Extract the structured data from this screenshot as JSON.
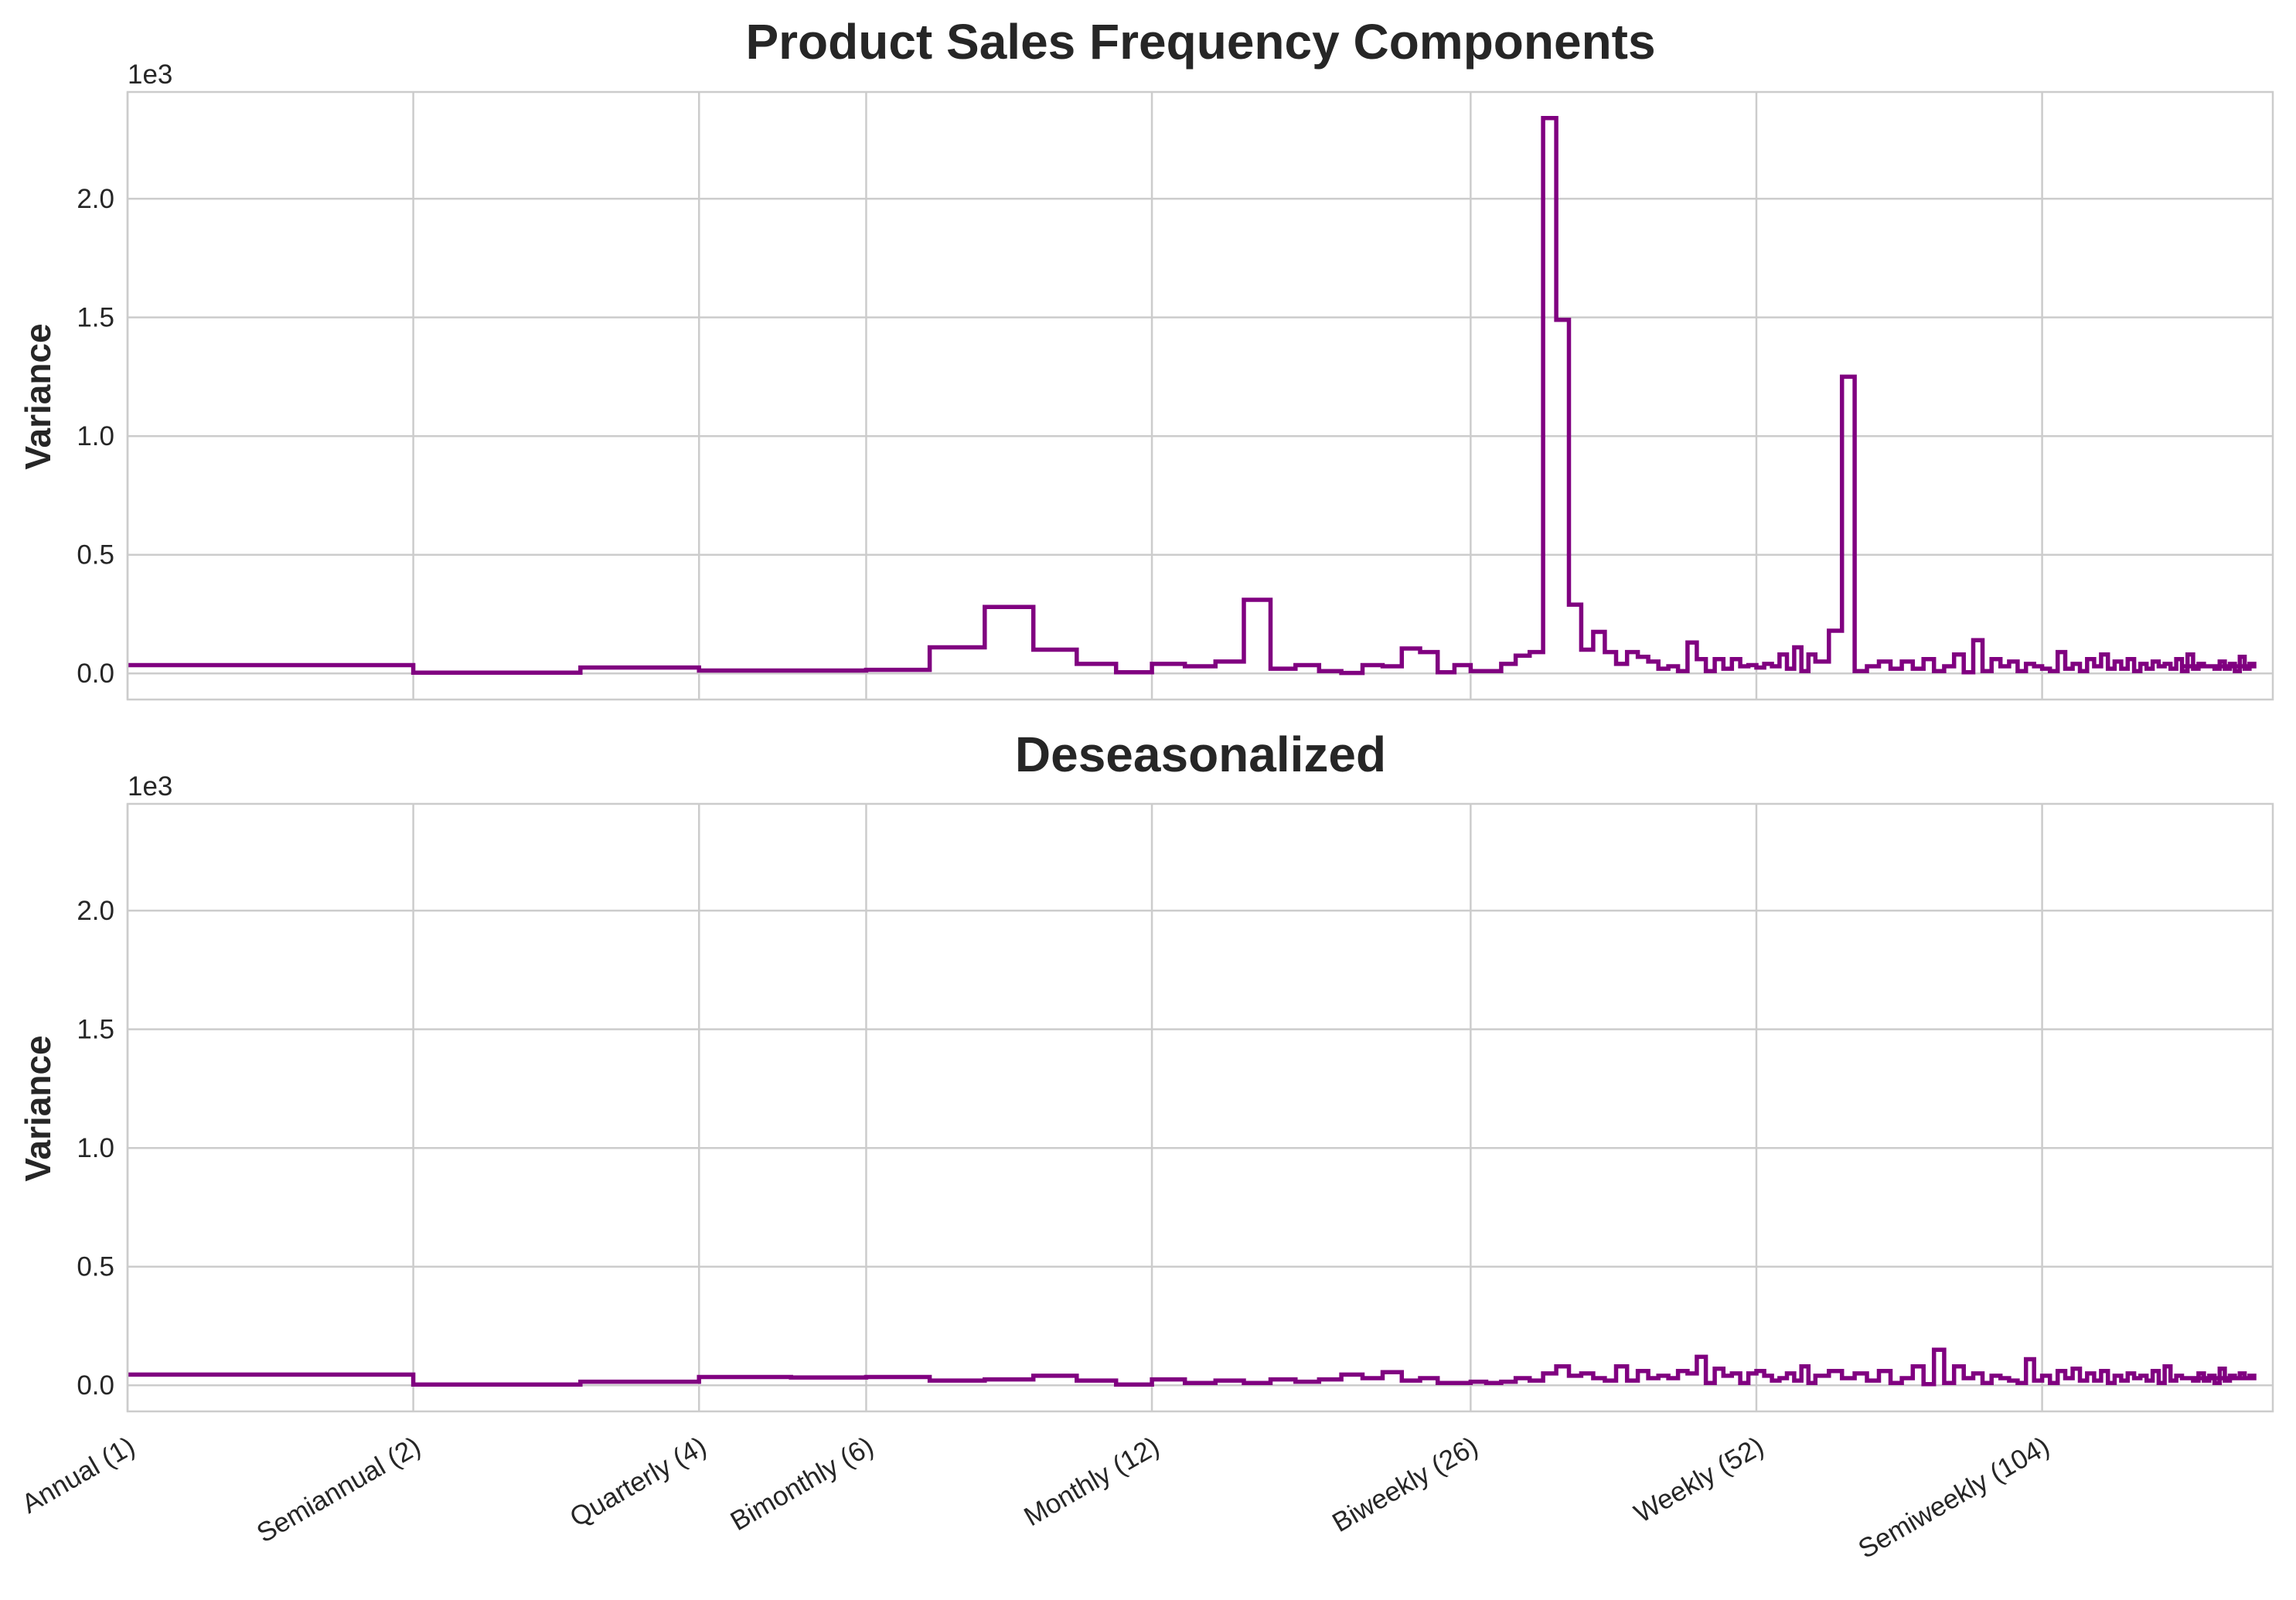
{
  "chart_data": [
    {
      "type": "line",
      "drawstyle": "steps",
      "title": "Product Sales Frequency Components",
      "ylabel": "Variance",
      "y_offset_label": "1e3",
      "ylim": [
        -0.11,
        2.45
      ],
      "yticks": [
        0.0,
        0.5,
        1.0,
        1.5,
        2.0
      ],
      "ytick_labels": [
        "0.0",
        "0.5",
        "1.0",
        "1.5",
        "2.0"
      ],
      "xscale": "log",
      "xlim": [
        1,
        182
      ],
      "xticks": [
        1,
        2,
        4,
        6,
        12,
        26,
        52,
        104
      ],
      "xtick_labels": [
        "Annual (1)",
        "Semiannual (2)",
        "Quarterly (4)",
        "Bimonthly (6)",
        "Monthly (12)",
        "Biweekly (26)",
        "Weekly (52)",
        "Semiweekly (104)"
      ],
      "show_xtick_labels": false,
      "grid": true,
      "color": "#800080",
      "series": [
        {
          "x": [
            1,
            2,
            3,
            4,
            5,
            6,
            7,
            8,
            9,
            10,
            11,
            12,
            13,
            14,
            15,
            16,
            17,
            18,
            19,
            20,
            21,
            22,
            23,
            24,
            25,
            26,
            27,
            28,
            29,
            30,
            31,
            32,
            33,
            34,
            35,
            36,
            37,
            38,
            39,
            40,
            41,
            42,
            43,
            44,
            45,
            46,
            47,
            48,
            49,
            50,
            51,
            52,
            53,
            54,
            55,
            56,
            57,
            58,
            59,
            60,
            62,
            64,
            66,
            68,
            70,
            72,
            74,
            76,
            78,
            80,
            82,
            84,
            86,
            88,
            90,
            92,
            94,
            96,
            98,
            100,
            102,
            104,
            106,
            108,
            110,
            112,
            114,
            116,
            118,
            120,
            122,
            124,
            126,
            128,
            130,
            132,
            134,
            136,
            138,
            140,
            142,
            144,
            146,
            148,
            150,
            152,
            154,
            156,
            158,
            160,
            162,
            164,
            166,
            168,
            170,
            172,
            174
          ],
          "y": [
            0.035,
            0.003,
            0.025,
            0.012,
            0.012,
            0.015,
            0.11,
            0.28,
            0.1,
            0.04,
            0.005,
            0.04,
            0.03,
            0.05,
            0.31,
            0.02,
            0.035,
            0.01,
            0.002,
            0.035,
            0.03,
            0.105,
            0.09,
            0.005,
            0.035,
            0.01,
            0.01,
            0.04,
            0.075,
            0.09,
            2.34,
            1.49,
            0.29,
            0.1,
            0.175,
            0.09,
            0.04,
            0.09,
            0.07,
            0.05,
            0.02,
            0.03,
            0.01,
            0.13,
            0.06,
            0.01,
            0.06,
            0.02,
            0.06,
            0.03,
            0.035,
            0.025,
            0.04,
            0.03,
            0.08,
            0.02,
            0.11,
            0.01,
            0.08,
            0.05,
            0.18,
            1.25,
            0.01,
            0.03,
            0.05,
            0.02,
            0.05,
            0.02,
            0.06,
            0.01,
            0.03,
            0.08,
            0.005,
            0.14,
            0.01,
            0.06,
            0.03,
            0.05,
            0.01,
            0.04,
            0.03,
            0.02,
            0.01,
            0.09,
            0.02,
            0.04,
            0.01,
            0.06,
            0.03,
            0.08,
            0.02,
            0.05,
            0.02,
            0.06,
            0.01,
            0.04,
            0.02,
            0.05,
            0.03,
            0.04,
            0.02,
            0.06,
            0.01,
            0.08,
            0.02,
            0.04,
            0.03,
            0.03,
            0.02,
            0.05,
            0.02,
            0.04,
            0.01,
            0.07,
            0.02,
            0.04,
            0.03
          ]
        }
      ]
    },
    {
      "type": "line",
      "drawstyle": "steps",
      "title": "Deseasonalized",
      "ylabel": "Variance",
      "y_offset_label": "1e3",
      "ylim": [
        -0.11,
        2.45
      ],
      "yticks": [
        0.0,
        0.5,
        1.0,
        1.5,
        2.0
      ],
      "ytick_labels": [
        "0.0",
        "0.5",
        "1.0",
        "1.5",
        "2.0"
      ],
      "xscale": "log",
      "xlim": [
        1,
        182
      ],
      "xticks": [
        1,
        2,
        4,
        6,
        12,
        26,
        52,
        104
      ],
      "xtick_labels": [
        "Annual (1)",
        "Semiannual (2)",
        "Quarterly (4)",
        "Bimonthly (6)",
        "Monthly (12)",
        "Biweekly (26)",
        "Weekly (52)",
        "Semiweekly (104)"
      ],
      "show_xtick_labels": true,
      "grid": true,
      "color": "#800080",
      "series": [
        {
          "x": [
            1,
            2,
            3,
            4,
            5,
            6,
            7,
            8,
            9,
            10,
            11,
            12,
            13,
            14,
            15,
            16,
            17,
            18,
            19,
            20,
            21,
            22,
            23,
            24,
            25,
            26,
            27,
            28,
            29,
            30,
            31,
            32,
            33,
            34,
            35,
            36,
            37,
            38,
            39,
            40,
            41,
            42,
            43,
            44,
            45,
            46,
            47,
            48,
            49,
            50,
            51,
            52,
            53,
            54,
            55,
            56,
            57,
            58,
            59,
            60,
            62,
            64,
            66,
            68,
            70,
            72,
            74,
            76,
            78,
            80,
            82,
            84,
            86,
            88,
            90,
            92,
            94,
            96,
            98,
            100,
            102,
            104,
            106,
            108,
            110,
            112,
            114,
            116,
            118,
            120,
            122,
            124,
            126,
            128,
            130,
            132,
            134,
            136,
            138,
            140,
            142,
            144,
            146,
            148,
            150,
            152,
            154,
            156,
            158,
            160,
            162,
            164,
            166,
            168,
            170,
            172,
            174
          ],
          "y": [
            0.045,
            0.003,
            0.015,
            0.035,
            0.033,
            0.035,
            0.02,
            0.025,
            0.04,
            0.02,
            0.003,
            0.025,
            0.01,
            0.02,
            0.01,
            0.025,
            0.015,
            0.025,
            0.045,
            0.03,
            0.055,
            0.02,
            0.03,
            0.01,
            0.01,
            0.015,
            0.01,
            0.015,
            0.03,
            0.02,
            0.05,
            0.08,
            0.04,
            0.05,
            0.03,
            0.02,
            0.08,
            0.02,
            0.06,
            0.03,
            0.04,
            0.03,
            0.06,
            0.05,
            0.12,
            0.01,
            0.07,
            0.04,
            0.05,
            0.01,
            0.05,
            0.06,
            0.04,
            0.02,
            0.03,
            0.05,
            0.02,
            0.08,
            0.01,
            0.04,
            0.06,
            0.03,
            0.05,
            0.02,
            0.06,
            0.01,
            0.03,
            0.08,
            0.005,
            0.15,
            0.01,
            0.08,
            0.03,
            0.05,
            0.01,
            0.04,
            0.03,
            0.02,
            0.01,
            0.11,
            0.02,
            0.04,
            0.01,
            0.06,
            0.03,
            0.07,
            0.02,
            0.05,
            0.02,
            0.06,
            0.01,
            0.04,
            0.02,
            0.05,
            0.03,
            0.04,
            0.02,
            0.06,
            0.01,
            0.08,
            0.02,
            0.04,
            0.03,
            0.03,
            0.02,
            0.05,
            0.02,
            0.04,
            0.01,
            0.07,
            0.02,
            0.04,
            0.03,
            0.05,
            0.03,
            0.04,
            0.03
          ]
        }
      ]
    }
  ]
}
